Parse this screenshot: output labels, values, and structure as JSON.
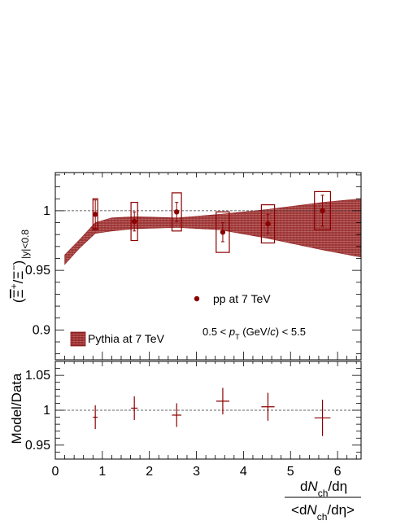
{
  "chart_data": [
    {
      "type": "scatter",
      "panel": "top",
      "ylabel_parts": {
        "open": "(",
        "num_bar": "Ξ",
        "num_sup": "+",
        "slash": "/",
        "den": "Ξ",
        "den_sup": "−",
        "close": ")",
        "sub": "|y|<0.8"
      },
      "ylim": [
        0.875,
        1.032
      ],
      "xlim": [
        0,
        6.5
      ],
      "yticks": [
        0.9,
        0.95,
        1.0
      ],
      "ytick_labels": [
        "0.9",
        "0.95",
        "1"
      ],
      "reference_line": 1.0,
      "legend": {
        "data_label": "pp at 7 TeV",
        "band_label": "Pythia at 7 TeV"
      },
      "annotation": {
        "pre": "0.5 < ",
        "p": "p",
        "sub": "T",
        "post1": " (GeV/",
        "c": "c",
        "post2": ") < 5.5"
      },
      "data_color": "#8b0000",
      "band_color": "#8b1a1a",
      "series": [
        {
          "name": "pp at 7 TeV",
          "x": [
            0.85,
            1.68,
            2.58,
            3.56,
            4.52,
            5.68
          ],
          "y": [
            0.997,
            0.991,
            0.999,
            0.982,
            0.989,
            1.0
          ],
          "stat_err": [
            0.012,
            0.008,
            0.008,
            0.008,
            0.008,
            0.013
          ],
          "syst_err": [
            0.013,
            0.016,
            0.016,
            0.017,
            0.016,
            0.016
          ],
          "syst_halfwidth_x": [
            0.05,
            0.07,
            0.1,
            0.14,
            0.14,
            0.17
          ]
        }
      ],
      "band": {
        "name": "Pythia at 7 TeV",
        "x": [
          0.2,
          0.5,
          0.85,
          1.2,
          1.7,
          2.6,
          3.5,
          4.5,
          5.7,
          6.5
        ],
        "y_low": [
          0.955,
          0.968,
          0.981,
          0.983,
          0.985,
          0.986,
          0.984,
          0.977,
          0.967,
          0.961
        ],
        "y_high": [
          0.963,
          0.975,
          0.99,
          0.994,
          0.995,
          0.994,
          0.997,
          1.001,
          1.007,
          1.01
        ]
      }
    },
    {
      "type": "scatter",
      "panel": "bottom",
      "ylabel": "Model/Data",
      "xlabel_parts": {
        "top_d": "d",
        "top_N": "N",
        "top_sub": "ch",
        "top_rest": "/dη",
        "bot_open": "<d",
        "bot_N": "N",
        "bot_sub": "ch",
        "bot_rest": "/dη>"
      },
      "ylim": [
        0.93,
        1.07
      ],
      "xlim": [
        0,
        6.5
      ],
      "yticks": [
        0.95,
        1.0,
        1.05
      ],
      "ytick_labels": [
        "0.95",
        "1",
        "1.05"
      ],
      "xticks": [
        0,
        1,
        2,
        3,
        4,
        5,
        6
      ],
      "xtick_labels": [
        "0",
        "1",
        "2",
        "3",
        "4",
        "5",
        "6"
      ],
      "reference_line": 1.0,
      "series": [
        {
          "name": "",
          "x": [
            0.85,
            1.68,
            2.58,
            3.56,
            4.52,
            5.68
          ],
          "y": [
            0.99,
            1.003,
            0.993,
            1.013,
            1.005,
            0.989
          ],
          "err": [
            0.017,
            0.017,
            0.017,
            0.019,
            0.02,
            0.026
          ],
          "xhalf": [
            0.05,
            0.07,
            0.1,
            0.14,
            0.14,
            0.17
          ]
        }
      ]
    }
  ]
}
